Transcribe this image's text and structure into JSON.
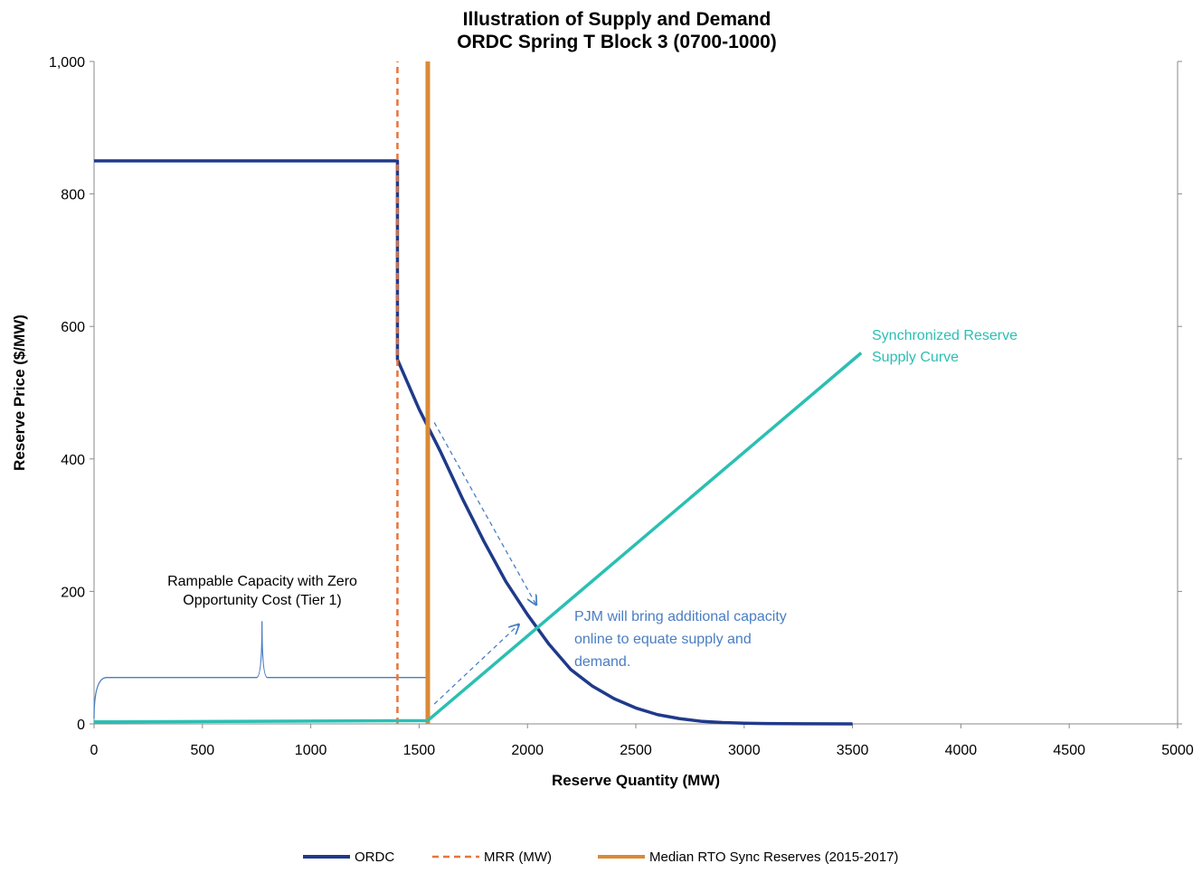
{
  "chart_data": {
    "type": "line",
    "title": [
      "Illustration of Supply and Demand",
      "ORDC Spring T Block 3 (0700-1000)"
    ],
    "xlabel": "Reserve Quantity (MW)",
    "ylabel": "Reserve Price ($/MW)",
    "xlim": [
      0,
      5000
    ],
    "ylim": [
      0,
      1000
    ],
    "x_ticks": [
      0,
      500,
      1000,
      1500,
      2000,
      2500,
      3000,
      3500,
      4000,
      4500,
      5000
    ],
    "x_tick_labels": [
      "0",
      "500",
      "1000",
      "1500",
      "2000",
      "2500",
      "3000",
      "3500",
      "4000",
      "4500",
      "5000"
    ],
    "y_ticks": [
      0,
      200,
      400,
      600,
      800,
      1000
    ],
    "y_tick_labels": [
      "0",
      "200",
      "400",
      "600",
      "800",
      "1,000"
    ],
    "grid": false,
    "legend_position": "bottom",
    "series": [
      {
        "name": "ORDC",
        "color": "#1F3A8A",
        "style": "solid",
        "points": [
          [
            0,
            850
          ],
          [
            1400,
            850
          ],
          [
            1400,
            550
          ],
          [
            1500,
            475
          ],
          [
            1600,
            410
          ],
          [
            1700,
            340
          ],
          [
            1800,
            275
          ],
          [
            1900,
            215
          ],
          [
            2000,
            165
          ],
          [
            2100,
            120
          ],
          [
            2200,
            82
          ],
          [
            2300,
            57
          ],
          [
            2400,
            38
          ],
          [
            2500,
            24
          ],
          [
            2600,
            14
          ],
          [
            2700,
            8
          ],
          [
            2800,
            4
          ],
          [
            2900,
            2
          ],
          [
            3000,
            1
          ],
          [
            3100,
            0.5
          ],
          [
            3300,
            0.2
          ],
          [
            3500,
            0
          ]
        ]
      },
      {
        "name": "MRR (MW)",
        "color": "#E8743B",
        "style": "dashed",
        "points": [
          [
            1400,
            0
          ],
          [
            1400,
            1000
          ]
        ]
      },
      {
        "name": "Median RTO Sync Reserves (2015-2017)",
        "color": "#D98A36",
        "style": "solid-thick",
        "points": [
          [
            1540,
            0
          ],
          [
            1540,
            1000
          ]
        ]
      },
      {
        "name": "Synchronized Reserve Supply Curve",
        "color": "#2BBFB3",
        "style": "solid",
        "points": [
          [
            0,
            3
          ],
          [
            1540,
            5
          ],
          [
            3540,
            560
          ]
        ]
      }
    ],
    "annotations": {
      "supply_label": [
        "Synchronized Reserve",
        "Supply Curve"
      ],
      "tier1_label": [
        "Rampable Capacity with Zero",
        "Opportunity Cost (Tier 1)"
      ],
      "pjm_label": [
        "PJM will bring additional capacity",
        "online to equate supply and",
        "demand."
      ]
    },
    "colors": {
      "annotation_blue": "#4A7EC2",
      "bracket": "#4A7EC2"
    }
  }
}
